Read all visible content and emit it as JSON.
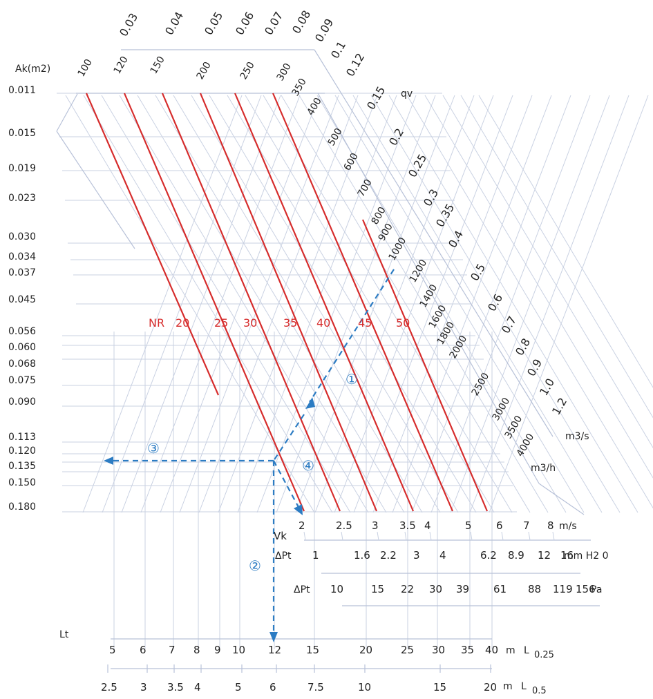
{
  "chart_data": {
    "type": "nomogram",
    "title": "",
    "ak_axis": {
      "label": "Ak(m2)",
      "ticks": [
        "0.011",
        "0.015",
        "0.019",
        "0.023",
        "0.030",
        "0.034",
        "0.037",
        "0.045",
        "0.056",
        "0.060",
        "0.068",
        "0.075",
        "0.090",
        "0.113",
        "0.120",
        "0.135",
        "0.150",
        "0.180"
      ]
    },
    "qv_axis": {
      "label": "qv",
      "unit": "m3/s",
      "ticks": [
        "0.03",
        "0.04",
        "0.05",
        "0.06",
        "0.07",
        "0.08",
        "0.09",
        "0.1",
        "0.12",
        "0.15",
        "0.2",
        "0.25",
        "0.3",
        "0.35",
        "0.4",
        "0.5",
        "0.6",
        "0.7",
        "0.8",
        "0.9",
        "1.0",
        "1.2"
      ]
    },
    "qh_axis": {
      "unit": "m3/h",
      "ticks": [
        "100",
        "120",
        "150",
        "200",
        "250",
        "300",
        "350",
        "400",
        "500",
        "600",
        "700",
        "800",
        "900",
        "1000",
        "1200",
        "1400",
        "1600",
        "1800",
        "2000",
        "2500",
        "3000",
        "3500",
        "4000"
      ]
    },
    "nr_curves": {
      "label": "NR",
      "values": [
        "20",
        "25",
        "30",
        "35",
        "40",
        "45",
        "50"
      ]
    },
    "vk_axis": {
      "label": "Vk",
      "unit": "m/s",
      "ticks": [
        "2",
        "2.5",
        "3",
        "3.5",
        "4",
        "5",
        "6",
        "7",
        "8"
      ]
    },
    "pt_mm_axis": {
      "label": "ΔPt",
      "unit": "mm H2 0",
      "ticks": [
        "1",
        "1.6",
        "2.2",
        "3",
        "4",
        "6.2",
        "8.9",
        "12",
        "16"
      ]
    },
    "pt_pa_axis": {
      "label": "ΔPt",
      "unit": "Pa",
      "ticks": [
        "10",
        "15",
        "22",
        "30",
        "39",
        "61",
        "88",
        "119",
        "156"
      ]
    },
    "lt_label": "Lt",
    "lt_025_axis": {
      "unit": "m",
      "suffix_main": "L",
      "suffix_sub": "0.25",
      "ticks": [
        "5",
        "6",
        "7",
        "8",
        "9",
        "10",
        "12",
        "15",
        "20",
        "25",
        "30",
        "35",
        "40"
      ]
    },
    "lt_05_axis": {
      "unit": "m",
      "suffix_main": "L",
      "suffix_sub": "0.5",
      "ticks": [
        "2.5",
        "3",
        "3.5",
        "4",
        "5",
        "6",
        "7.5",
        "10",
        "15",
        "20"
      ]
    },
    "example_path": {
      "step_labels": [
        "①",
        "②",
        "③",
        "④"
      ]
    },
    "colors": {
      "grid": "#c9d1e2",
      "nr_lines": "#d62c2c",
      "nr_labels": "#d62c2c",
      "example_path": "#2c7cc3",
      "text": "#222222"
    }
  }
}
